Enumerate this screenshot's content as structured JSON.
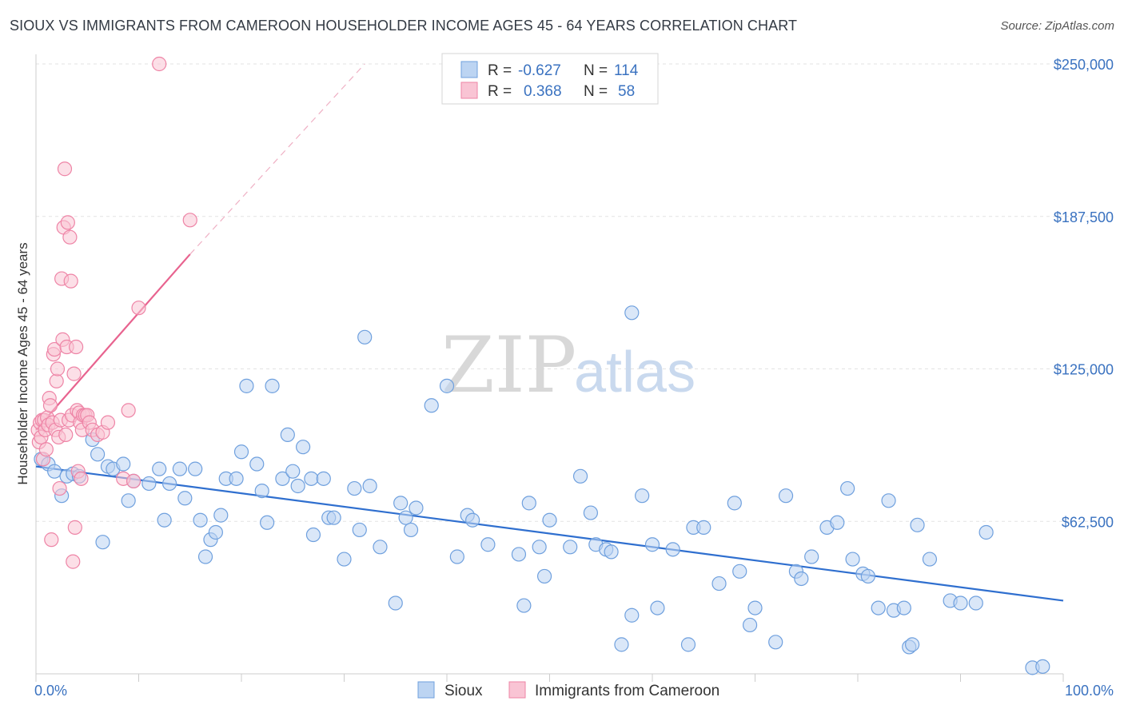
{
  "header": {
    "title": "SIOUX VS IMMIGRANTS FROM CAMEROON HOUSEHOLDER INCOME AGES 45 - 64 YEARS CORRELATION CHART",
    "source": "Source: ZipAtlas.com"
  },
  "watermark": {
    "zip": "ZIP",
    "atlas": "atlas"
  },
  "legend": {
    "rows": [
      {
        "r_label": "R =",
        "r_value": "-0.627",
        "n_label": "N =",
        "n_value": "114",
        "color": "#a9c8ef"
      },
      {
        "r_label": "R =",
        "r_value": "0.368",
        "n_label": "N =",
        "n_value": "58",
        "color": "#f7b5c8"
      }
    ]
  },
  "chart_data": {
    "type": "scatter",
    "title": "SIOUX VS IMMIGRANTS FROM CAMEROON HOUSEHOLDER INCOME AGES 45 - 64 YEARS CORRELATION CHART",
    "xlabel": "",
    "ylabel": "Householder Income Ages 45 - 64 years",
    "xlim": [
      0,
      100
    ],
    "ylim": [
      0,
      250000
    ],
    "x_tick_labels": [
      "0.0%",
      "100.0%"
    ],
    "y_ticks": [
      62500,
      125000,
      187500,
      250000
    ],
    "y_tick_labels": [
      "$62,500",
      "$125,000",
      "$187,500",
      "$250,000"
    ],
    "grid": true,
    "legend_position": "top-center",
    "series": [
      {
        "name": "Sioux",
        "color": "#6fa0de",
        "fill": "#bcd4f2",
        "trend": {
          "x0": 0,
          "y0": 85000,
          "x1": 100,
          "y1": 30000
        },
        "points": [
          [
            0.5,
            88000
          ],
          [
            1.2,
            86000
          ],
          [
            1.8,
            83000
          ],
          [
            2.5,
            73000
          ],
          [
            3.0,
            81000
          ],
          [
            3.6,
            82000
          ],
          [
            4.2,
            81000
          ],
          [
            5.5,
            96000
          ],
          [
            6.0,
            90000
          ],
          [
            6.5,
            54000
          ],
          [
            7.0,
            85000
          ],
          [
            7.5,
            84000
          ],
          [
            8.5,
            86000
          ],
          [
            9.0,
            71000
          ],
          [
            9.5,
            79000
          ],
          [
            11.0,
            78000
          ],
          [
            12.0,
            84000
          ],
          [
            12.5,
            63000
          ],
          [
            13.0,
            78000
          ],
          [
            14.0,
            84000
          ],
          [
            14.5,
            72000
          ],
          [
            15.5,
            84000
          ],
          [
            16.0,
            63000
          ],
          [
            16.5,
            48000
          ],
          [
            17.0,
            55000
          ],
          [
            17.5,
            58000
          ],
          [
            18.0,
            65000
          ],
          [
            18.5,
            80000
          ],
          [
            19.5,
            80000
          ],
          [
            20.0,
            91000
          ],
          [
            20.5,
            118000
          ],
          [
            21.5,
            86000
          ],
          [
            22.0,
            75000
          ],
          [
            22.5,
            62000
          ],
          [
            23.0,
            118000
          ],
          [
            24.0,
            80000
          ],
          [
            24.5,
            98000
          ],
          [
            25.0,
            83000
          ],
          [
            25.5,
            77000
          ],
          [
            26.0,
            93000
          ],
          [
            26.8,
            80000
          ],
          [
            27.0,
            57000
          ],
          [
            28.0,
            80000
          ],
          [
            28.5,
            64000
          ],
          [
            29.0,
            64000
          ],
          [
            30.0,
            47000
          ],
          [
            31.0,
            76000
          ],
          [
            31.5,
            59000
          ],
          [
            32.0,
            138000
          ],
          [
            32.5,
            77000
          ],
          [
            33.5,
            52000
          ],
          [
            35.0,
            29000
          ],
          [
            35.5,
            70000
          ],
          [
            36.0,
            64000
          ],
          [
            36.5,
            59000
          ],
          [
            37.0,
            68000
          ],
          [
            38.5,
            110000
          ],
          [
            40.0,
            118000
          ],
          [
            41.0,
            48000
          ],
          [
            42.0,
            65000
          ],
          [
            42.5,
            63000
          ],
          [
            44.0,
            53000
          ],
          [
            47.0,
            49000
          ],
          [
            47.5,
            28000
          ],
          [
            48.0,
            70000
          ],
          [
            49.0,
            52000
          ],
          [
            49.5,
            40000
          ],
          [
            50.0,
            63000
          ],
          [
            52.0,
            52000
          ],
          [
            53.0,
            81000
          ],
          [
            54.0,
            66000
          ],
          [
            54.5,
            53000
          ],
          [
            55.5,
            51000
          ],
          [
            56.0,
            50000
          ],
          [
            57.0,
            12000
          ],
          [
            58.0,
            24000
          ],
          [
            59.0,
            73000
          ],
          [
            60.0,
            53000
          ],
          [
            60.5,
            27000
          ],
          [
            62.0,
            51000
          ],
          [
            63.5,
            12000
          ],
          [
            64.0,
            60000
          ],
          [
            65.0,
            60000
          ],
          [
            66.5,
            37000
          ],
          [
            68.0,
            70000
          ],
          [
            68.5,
            42000
          ],
          [
            69.5,
            20000
          ],
          [
            70.0,
            27000
          ],
          [
            72.0,
            13000
          ],
          [
            73.0,
            73000
          ],
          [
            74.0,
            42000
          ],
          [
            74.5,
            39000
          ],
          [
            75.5,
            48000
          ],
          [
            77.0,
            60000
          ],
          [
            78.0,
            62000
          ],
          [
            79.0,
            76000
          ],
          [
            79.5,
            47000
          ],
          [
            80.5,
            41000
          ],
          [
            81.0,
            40000
          ],
          [
            82.0,
            27000
          ],
          [
            83.0,
            71000
          ],
          [
            83.5,
            26000
          ],
          [
            84.5,
            27000
          ],
          [
            85.0,
            11000
          ],
          [
            85.3,
            12000
          ],
          [
            85.8,
            61000
          ],
          [
            87.0,
            47000
          ],
          [
            89.0,
            30000
          ],
          [
            90.0,
            29000
          ],
          [
            91.5,
            29000
          ],
          [
            92.5,
            58000
          ],
          [
            97.0,
            2500
          ],
          [
            98.0,
            3000
          ],
          [
            58.0,
            148000
          ]
        ]
      },
      {
        "name": "Immigrants from Cameroon",
        "color": "#ee84a6",
        "fill": "#f9c4d4",
        "trend": {
          "x0": 0,
          "y0": 100000,
          "x1": 15,
          "y1": 172000
        },
        "trend_ext": {
          "x0": 15,
          "y0": 172000,
          "x1": 32,
          "y1": 250000
        },
        "points": [
          [
            0.2,
            100000
          ],
          [
            0.3,
            95000
          ],
          [
            0.4,
            103000
          ],
          [
            0.5,
            97000
          ],
          [
            0.6,
            104000
          ],
          [
            0.7,
            88000
          ],
          [
            0.8,
            104000
          ],
          [
            0.9,
            100000
          ],
          [
            1.0,
            92000
          ],
          [
            1.1,
            105000
          ],
          [
            1.2,
            102000
          ],
          [
            1.3,
            113000
          ],
          [
            1.4,
            110000
          ],
          [
            1.5,
            55000
          ],
          [
            1.6,
            103000
          ],
          [
            1.7,
            131000
          ],
          [
            1.8,
            133000
          ],
          [
            1.9,
            100000
          ],
          [
            2.0,
            120000
          ],
          [
            2.1,
            125000
          ],
          [
            2.2,
            97000
          ],
          [
            2.3,
            76000
          ],
          [
            2.4,
            104000
          ],
          [
            2.5,
            162000
          ],
          [
            2.6,
            137000
          ],
          [
            2.7,
            183000
          ],
          [
            2.8,
            207000
          ],
          [
            2.9,
            98000
          ],
          [
            3.0,
            134000
          ],
          [
            3.1,
            185000
          ],
          [
            3.2,
            104000
          ],
          [
            3.3,
            179000
          ],
          [
            3.4,
            161000
          ],
          [
            3.5,
            106000
          ],
          [
            3.6,
            46000
          ],
          [
            3.7,
            123000
          ],
          [
            3.8,
            60000
          ],
          [
            3.9,
            134000
          ],
          [
            4.0,
            108000
          ],
          [
            4.1,
            83000
          ],
          [
            4.2,
            107000
          ],
          [
            4.3,
            103000
          ],
          [
            4.4,
            80000
          ],
          [
            4.5,
            100000
          ],
          [
            4.6,
            106000
          ],
          [
            4.8,
            106000
          ],
          [
            5.0,
            106000
          ],
          [
            5.2,
            103000
          ],
          [
            5.5,
            100000
          ],
          [
            6.0,
            98000
          ],
          [
            6.5,
            99000
          ],
          [
            7.0,
            103000
          ],
          [
            8.5,
            80000
          ],
          [
            9.0,
            108000
          ],
          [
            9.5,
            79000
          ],
          [
            10.0,
            150000
          ],
          [
            12.0,
            250000
          ],
          [
            15.0,
            186000
          ]
        ]
      }
    ]
  }
}
